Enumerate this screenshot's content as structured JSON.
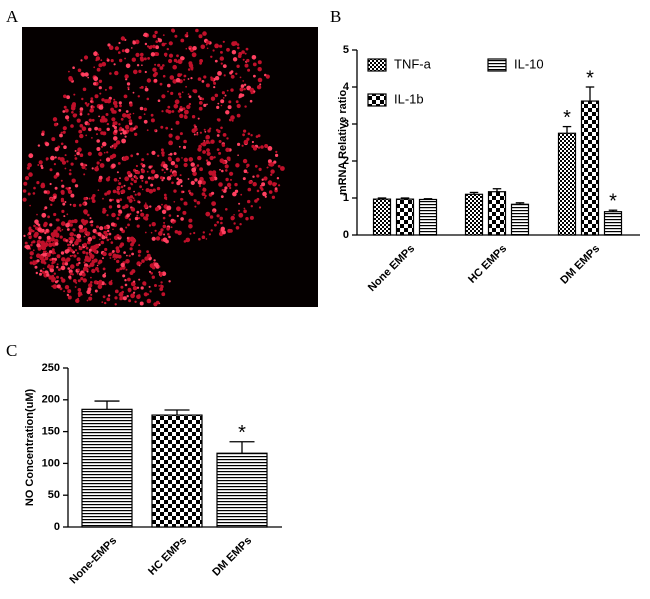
{
  "panel_labels": [
    "A",
    "B",
    "C"
  ],
  "chart_data": [
    {
      "type": "bar",
      "ylabel": "mRNA Relative ratio",
      "categories": [
        "None EMPs",
        "HC EMPs",
        "DM EMPs"
      ],
      "series": [
        {
          "name": "TNF-a",
          "pattern": "fine-checker",
          "values": [
            0.97,
            1.1,
            2.75
          ],
          "errors": [
            0.03,
            0.05,
            0.18
          ],
          "significance": [
            null,
            null,
            "*"
          ]
        },
        {
          "name": "IL-1b",
          "pattern": "coarse-checker",
          "values": [
            0.97,
            1.17,
            3.62
          ],
          "errors": [
            0.03,
            0.08,
            0.38
          ],
          "significance": [
            null,
            null,
            "*"
          ]
        },
        {
          "name": "IL-10",
          "pattern": "stripes",
          "values": [
            0.96,
            0.83,
            0.63
          ],
          "errors": [
            0.02,
            0.04,
            0.04
          ],
          "significance": [
            null,
            null,
            "*"
          ]
        }
      ],
      "ylim": [
        0,
        5
      ],
      "yticks": [
        0,
        1,
        2,
        3,
        4,
        5
      ],
      "legend": "upper-left"
    },
    {
      "type": "bar",
      "ylabel": "NO Concentration(uM)",
      "categories": [
        "None-EMPs",
        "HC EMPs",
        "DM EMPs"
      ],
      "series": [
        {
          "patterns": [
            "stripes",
            "coarse-checker",
            "stripes"
          ],
          "values": [
            185,
            176,
            116
          ],
          "errors": [
            13,
            8,
            18
          ],
          "significance": [
            null,
            null,
            "*"
          ]
        }
      ],
      "ylim": [
        0,
        250
      ],
      "yticks": [
        0,
        50,
        100,
        150,
        200,
        250
      ]
    }
  ]
}
